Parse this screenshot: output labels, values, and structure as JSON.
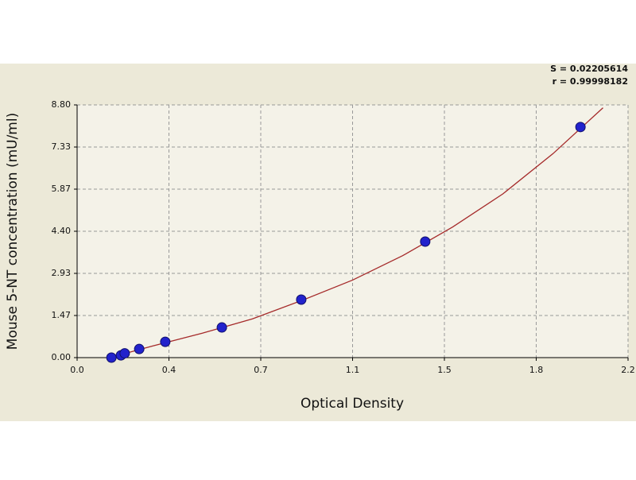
{
  "chart_data": {
    "type": "scatter",
    "xlabel": "Optical Density",
    "ylabel": "Mouse 5-NT concentration (mU/ml)",
    "annotations": [
      "S = 0.02205614",
      "r = 0.99998182"
    ],
    "x": [
      0.137,
      0.175,
      0.19,
      0.248,
      0.352,
      0.578,
      0.895,
      1.39,
      2.01
    ],
    "series": [
      {
        "color": "#2222cc",
        "values": [
          0.0,
          0.08,
          0.15,
          0.3,
          0.55,
          1.05,
          2.02,
          4.04,
          8.03
        ]
      }
    ],
    "curve": {
      "color": "#a52a2a",
      "x": [
        0.13,
        0.3,
        0.5,
        0.7,
        0.9,
        1.1,
        1.3,
        1.5,
        1.7,
        1.9,
        2.1
      ],
      "y": [
        0.0,
        0.4,
        0.85,
        1.35,
        2.0,
        2.7,
        3.55,
        4.55,
        5.7,
        7.1,
        8.7
      ]
    },
    "xlim": [
      0,
      2.2
    ],
    "ylim": [
      0,
      8.8
    ],
    "xticks": [
      {
        "value": 0,
        "label": "0.0"
      },
      {
        "value": 0.3667,
        "label": "0.4"
      },
      {
        "value": 0.7333,
        "label": "0.7"
      },
      {
        "value": 1.1,
        "label": "1.1"
      },
      {
        "value": 1.4667,
        "label": "1.5"
      },
      {
        "value": 1.8333,
        "label": "1.8"
      },
      {
        "value": 2.2,
        "label": "2.2"
      }
    ],
    "yticks": [
      {
        "value": 0,
        "label": "0.00"
      },
      {
        "value": 1.4667,
        "label": "1.47"
      },
      {
        "value": 2.9333,
        "label": "2.93"
      },
      {
        "value": 4.4,
        "label": "4.40"
      },
      {
        "value": 5.8667,
        "label": "5.87"
      },
      {
        "value": 7.3333,
        "label": "7.33"
      },
      {
        "value": 8.8,
        "label": "8.80"
      }
    ],
    "grid": true
  }
}
